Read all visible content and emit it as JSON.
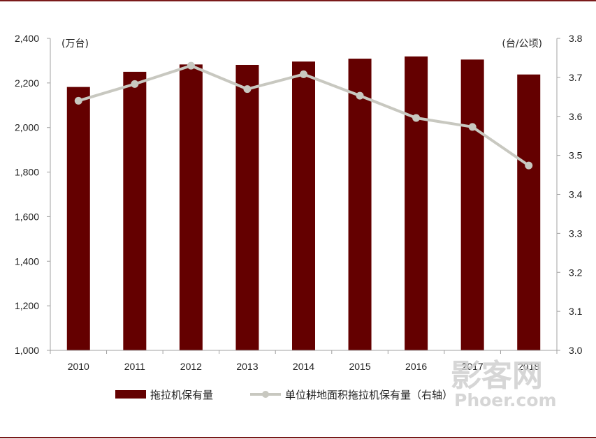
{
  "chart_data": {
    "type": "bar+line",
    "categories": [
      "2010",
      "2011",
      "2012",
      "2013",
      "2014",
      "2015",
      "2016",
      "2017",
      "2018"
    ],
    "series": [
      {
        "name": "拖拉机保有量",
        "type": "bar",
        "axis": "left",
        "values": [
          2182,
          2250,
          2283,
          2281,
          2296,
          2309,
          2319,
          2305,
          2238
        ]
      },
      {
        "name": "单位耕地面积拖拉机保有量（右轴）",
        "type": "line",
        "axis": "right",
        "values": [
          3.64,
          3.683,
          3.73,
          3.67,
          3.708,
          3.653,
          3.596,
          3.573,
          3.474
        ]
      }
    ],
    "left_axis": {
      "unit": "(万台)",
      "ylim": [
        1000,
        2400
      ],
      "ticks": [
        "1,000",
        "1,200",
        "1,400",
        "1,600",
        "1,800",
        "2,000",
        "2,200",
        "2,400"
      ]
    },
    "right_axis": {
      "unit": "(台/公顷)",
      "ylim": [
        3.0,
        3.8
      ],
      "ticks": [
        "3.0",
        "3.1",
        "3.2",
        "3.3",
        "3.4",
        "3.5",
        "3.6",
        "3.7",
        "3.8"
      ]
    },
    "grid": false,
    "legend": "bottom",
    "colors": {
      "bar": "#640000",
      "line": "#c8c8c0",
      "axis": "#a0a0a0",
      "frame": "#7a1a1a"
    }
  },
  "watermark": {
    "line1": "影客网",
    "line2": "Phoer.com"
  }
}
